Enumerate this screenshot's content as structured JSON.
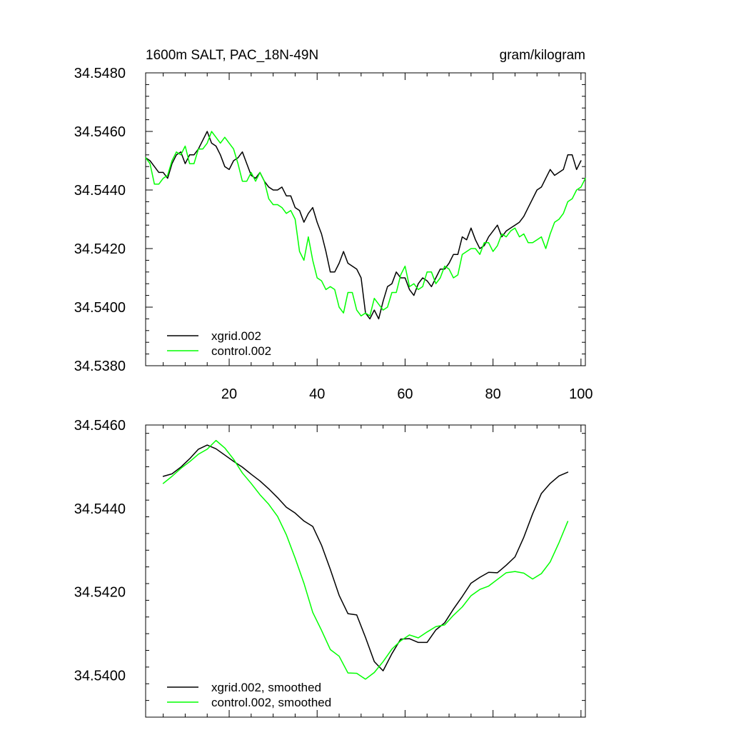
{
  "chart_data": [
    {
      "type": "line",
      "title": "1600m SALT, PAC_18N-49N",
      "units": "gram/kilogram",
      "xlabel": "",
      "ylabel": "",
      "xlim": [
        1,
        101
      ],
      "ylim": [
        34.538,
        34.548
      ],
      "x_ticks": [
        20,
        40,
        60,
        80,
        100
      ],
      "y_ticks": [
        34.538,
        34.54,
        34.542,
        34.544,
        34.546,
        34.548
      ],
      "y_tick_labels": [
        "34.5380",
        "34.5400",
        "34.5420",
        "34.5440",
        "34.5460",
        "34.5480"
      ],
      "legend_position": "bottom-left",
      "series": [
        {
          "name": "xgrid.002",
          "color": "#000000",
          "x": [
            1,
            2,
            3,
            4,
            5,
            6,
            7,
            8,
            9,
            10,
            11,
            12,
            13,
            14,
            15,
            16,
            17,
            18,
            19,
            20,
            21,
            22,
            23,
            24,
            25,
            26,
            27,
            28,
            29,
            30,
            31,
            32,
            33,
            34,
            35,
            36,
            37,
            38,
            39,
            40,
            41,
            42,
            43,
            44,
            45,
            46,
            47,
            48,
            49,
            50,
            51,
            52,
            53,
            54,
            55,
            56,
            57,
            58,
            59,
            60,
            61,
            62,
            63,
            64,
            65,
            66,
            67,
            68,
            69,
            70,
            71,
            72,
            73,
            74,
            75,
            76,
            77,
            78,
            79,
            80,
            81,
            82,
            83,
            84,
            85,
            86,
            87,
            88,
            89,
            90,
            91,
            92,
            93,
            94,
            95,
            96,
            97,
            98,
            99,
            100
          ],
          "values": [
            34.5451,
            34.545,
            34.5448,
            34.5446,
            34.5446,
            34.5444,
            34.5449,
            34.5452,
            34.5453,
            34.5449,
            34.5452,
            34.5452,
            34.5454,
            34.5457,
            34.546,
            34.5456,
            34.5455,
            34.5452,
            34.5448,
            34.5447,
            34.545,
            34.5451,
            34.5453,
            34.5449,
            34.5445,
            34.5444,
            34.5446,
            34.5443,
            34.5441,
            34.544,
            34.544,
            34.5441,
            34.5438,
            34.5438,
            34.5434,
            34.5433,
            34.5429,
            34.5432,
            34.5434,
            34.5429,
            34.5425,
            34.5419,
            34.5412,
            34.5412,
            34.5415,
            34.5419,
            34.5415,
            34.5414,
            34.5413,
            34.541,
            34.5398,
            34.5396,
            34.5399,
            34.5396,
            34.5402,
            34.5407,
            34.5408,
            34.5412,
            34.541,
            34.541,
            34.5406,
            34.5404,
            34.5408,
            34.541,
            34.5409,
            34.5407,
            34.541,
            34.5413,
            34.5413,
            34.5415,
            34.5418,
            34.5418,
            34.5424,
            34.5423,
            34.5427,
            34.5423,
            34.542,
            34.5421,
            34.5424,
            34.5426,
            34.5428,
            34.5424,
            34.5426,
            34.5427,
            34.5428,
            34.5429,
            34.5431,
            34.5434,
            34.5437,
            34.544,
            34.5441,
            34.5444,
            34.5447,
            34.5445,
            34.5446,
            34.5447,
            34.5452,
            34.5452,
            34.5447,
            34.545
          ]
        },
        {
          "name": "control.002",
          "color": "#00ff00",
          "x": [
            1,
            2,
            3,
            4,
            5,
            6,
            7,
            8,
            9,
            10,
            11,
            12,
            13,
            14,
            15,
            16,
            17,
            18,
            19,
            20,
            21,
            22,
            23,
            24,
            25,
            26,
            27,
            28,
            29,
            30,
            31,
            32,
            33,
            34,
            35,
            36,
            37,
            38,
            39,
            40,
            41,
            42,
            43,
            44,
            45,
            46,
            47,
            48,
            49,
            50,
            51,
            52,
            53,
            54,
            55,
            56,
            57,
            58,
            59,
            60,
            61,
            62,
            63,
            64,
            65,
            66,
            67,
            68,
            69,
            70,
            71,
            72,
            73,
            74,
            75,
            76,
            77,
            78,
            79,
            80,
            81,
            82,
            83,
            84,
            85,
            86,
            87,
            88,
            89,
            90,
            91,
            92,
            93,
            94,
            95,
            96,
            97,
            98,
            99,
            100,
            101
          ],
          "values": [
            34.5451,
            34.5449,
            34.5442,
            34.5442,
            34.5444,
            34.5445,
            34.545,
            34.5453,
            34.5452,
            34.5455,
            34.5449,
            34.5449,
            34.5454,
            34.5454,
            34.5456,
            34.546,
            34.5458,
            34.5456,
            34.5458,
            34.5456,
            34.5454,
            34.5449,
            34.5443,
            34.5443,
            34.5446,
            34.5443,
            34.5446,
            34.5443,
            34.5437,
            34.5435,
            34.5435,
            34.5434,
            34.5432,
            34.5433,
            34.543,
            34.5419,
            34.5416,
            34.5424,
            34.5416,
            34.541,
            34.5409,
            34.5406,
            34.5407,
            34.5406,
            34.54,
            34.5398,
            34.5405,
            34.5405,
            34.5399,
            34.5397,
            34.5398,
            34.5397,
            34.5403,
            34.5401,
            34.5399,
            34.54,
            34.5405,
            34.5405,
            34.5411,
            34.5414,
            34.5407,
            34.5408,
            34.5406,
            34.5407,
            34.5412,
            34.5412,
            34.5408,
            34.541,
            34.5414,
            34.5413,
            34.541,
            34.5411,
            34.5418,
            34.5419,
            34.542,
            34.542,
            34.5418,
            34.5422,
            34.5422,
            34.5419,
            34.5421,
            34.5425,
            34.5424,
            34.5426,
            34.5427,
            34.5424,
            34.5425,
            34.5422,
            34.5422,
            34.5423,
            34.5424,
            34.542,
            34.5425,
            34.5429,
            34.543,
            34.5432,
            34.5436,
            34.5437,
            34.544,
            34.5441,
            34.5444
          ]
        }
      ]
    },
    {
      "type": "line",
      "title": "",
      "xlabel": "",
      "ylabel": "",
      "xlim": [
        1,
        101
      ],
      "ylim": [
        34.539,
        34.546
      ],
      "x_ticks": [
        20,
        40,
        60,
        80,
        100
      ],
      "y_ticks": [
        34.54,
        34.542,
        34.544,
        34.546
      ],
      "y_tick_labels": [
        "34.5400",
        "34.5420",
        "34.5440",
        "34.5460"
      ],
      "legend_position": "bottom-left",
      "series": [
        {
          "name": "xgrid.002, smoothed",
          "color": "#000000",
          "x": [
            5,
            7,
            9,
            11,
            13,
            15,
            17,
            19,
            21,
            23,
            25,
            27,
            29,
            31,
            33,
            35,
            37,
            39,
            41,
            43,
            45,
            47,
            49,
            51,
            53,
            55,
            57,
            59,
            61,
            63,
            65,
            67,
            69,
            71,
            73,
            75,
            77,
            79,
            81,
            83,
            85,
            87,
            89,
            91,
            93,
            95,
            97
          ],
          "values": [
            34.54477,
            34.54483,
            34.54499,
            34.54519,
            34.54542,
            34.54552,
            34.54543,
            34.54528,
            34.54513,
            34.54499,
            34.54482,
            34.54466,
            34.54447,
            34.54426,
            34.54403,
            34.54389,
            34.5437,
            34.54357,
            34.54312,
            34.54254,
            34.54192,
            34.54148,
            34.54145,
            34.54091,
            34.54033,
            34.54011,
            34.54052,
            34.54087,
            34.54088,
            34.54079,
            34.54079,
            34.54109,
            34.54126,
            34.54159,
            34.54189,
            34.54221,
            34.54235,
            34.54247,
            34.54246,
            34.54264,
            34.54284,
            34.54331,
            34.54387,
            34.54436,
            34.5446,
            34.54478,
            34.54487
          ]
        },
        {
          "name": "control.002, smoothed",
          "color": "#00ff00",
          "x": [
            5,
            7,
            9,
            11,
            13,
            15,
            17,
            19,
            21,
            23,
            25,
            27,
            29,
            31,
            33,
            35,
            37,
            39,
            41,
            43,
            45,
            47,
            49,
            51,
            53,
            55,
            57,
            59,
            61,
            63,
            65,
            67,
            69,
            71,
            73,
            75,
            77,
            79,
            81,
            83,
            85,
            87,
            89,
            91,
            93,
            95,
            97
          ],
          "values": [
            34.5446,
            34.54477,
            34.54496,
            34.54512,
            34.5453,
            34.54542,
            34.54563,
            34.54545,
            34.54518,
            34.54485,
            34.5446,
            34.54433,
            34.5441,
            34.54381,
            34.54337,
            34.54281,
            34.54221,
            34.54151,
            34.54108,
            34.54062,
            34.54046,
            34.54006,
            34.54005,
            34.53991,
            34.54007,
            34.54033,
            34.54063,
            34.54083,
            34.54097,
            34.5409,
            34.54104,
            34.54117,
            34.54121,
            34.54144,
            34.54164,
            34.54191,
            34.54206,
            34.54214,
            34.5423,
            34.54246,
            34.54249,
            34.54245,
            34.54231,
            34.54244,
            34.54272,
            34.54318,
            34.54369
          ]
        }
      ]
    }
  ]
}
